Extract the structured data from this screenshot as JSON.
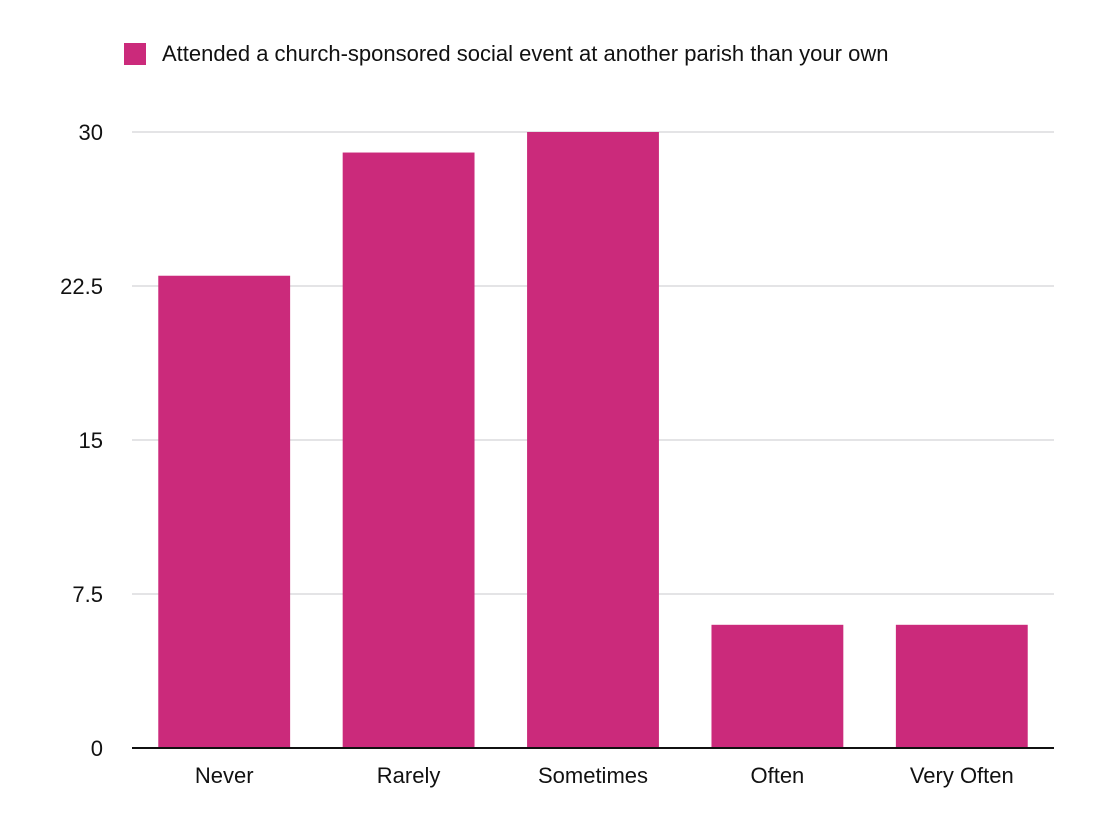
{
  "chart_data": {
    "type": "bar",
    "categories": [
      "Never",
      "Rarely",
      "Sometimes",
      "Often",
      "Very Often"
    ],
    "series": [
      {
        "name": "Attended a church-sponsored social event at another parish than your own",
        "values": [
          23,
          29,
          30,
          6,
          6
        ],
        "color": "#cb2a7b"
      }
    ],
    "title": "",
    "xlabel": "",
    "ylabel": "",
    "ylim": [
      0,
      30
    ],
    "yticks": [
      0,
      7.5,
      15,
      22.5,
      30
    ],
    "ytick_labels": [
      "0",
      "7.5",
      "15",
      "22.5",
      "30"
    ],
    "grid": true,
    "legend_position": "top-left",
    "colors": {
      "bar": "#cb2a7b",
      "grid": "#c8c8cc",
      "axis": "#111111",
      "text": "#111111"
    }
  }
}
